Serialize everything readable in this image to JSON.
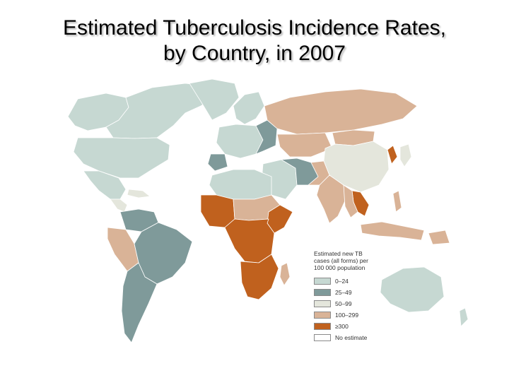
{
  "title": {
    "line1": "Estimated Tuberculosis Incidence Rates,",
    "line2": "by Country, in 2007"
  },
  "legend": {
    "title_lines": [
      "Estimated new TB",
      "cases (all forms) per",
      "100 000 population"
    ],
    "items": [
      {
        "label": "0–24",
        "color": "#c6d8d2"
      },
      {
        "label": "25–49",
        "color": "#7f9a9a"
      },
      {
        "label": "50–99",
        "color": "#e4e6dc"
      },
      {
        "label": "100–299",
        "color": "#d9b397"
      },
      {
        "label": "≥300",
        "color": "#c0611e"
      },
      {
        "label": "No estimate",
        "color": "#ffffff"
      }
    ]
  },
  "colors": {
    "low": "#c6d8d2",
    "lowmid": "#7f9a9a",
    "mid": "#e4e6dc",
    "high": "#d9b397",
    "veryhigh": "#c0611e"
  }
}
